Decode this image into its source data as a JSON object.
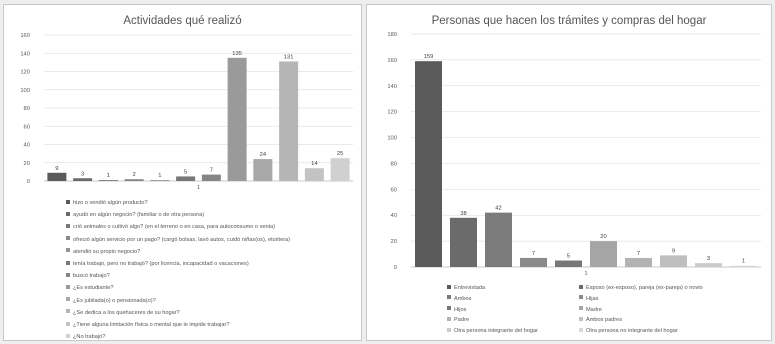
{
  "chart_data": [
    {
      "type": "bar",
      "title": "Actividades qué realizó",
      "ylim": [
        0,
        160
      ],
      "yticks": [
        0,
        20,
        40,
        60,
        80,
        100,
        120,
        140,
        160
      ],
      "categories": [
        "hizo o vendió algún producto?",
        "ayudó en algún negocio? (familiar o de otra persona)",
        "crió animales o cultivó algo? (en el terreno o en casa, para autoconsumo o venta)",
        "ofreció algún servicio por un pago? (cargó bolsas, lavó autos, cuidó niñas(os), etcétera)",
        "atendió su propio negocio?",
        "tenía trabajo, pero no trabajó? (por licencia, incapacidad o vacaciones)",
        "buscó trabajo?",
        "¿Es estudiante?",
        "¿Es jubilada(o) o pensionada(o)?",
        "¿Se dedica a los quehaceres de su hogar?",
        "¿Tiene alguna limitación física o mental que le impide trabajar?",
        "¿No trabajó?"
      ],
      "values": [
        9,
        3,
        1,
        2,
        1,
        5,
        7,
        135,
        24,
        131,
        14,
        25
      ],
      "colors": [
        "#5a5a5a",
        "#6a6a6a",
        "#7a7a7a",
        "#888888",
        "#939393",
        "#777777",
        "#858585",
        "#9a9a9a",
        "#a8a8a8",
        "#b5b5b5",
        "#c3c3c3",
        "#d0d0d0"
      ],
      "xtick_label": "1",
      "legend_position": "bottom",
      "grid": true
    },
    {
      "type": "bar",
      "title": "Personas que hacen los trámites y compras del hogar",
      "ylim": [
        0,
        180
      ],
      "yticks": [
        0,
        20,
        40,
        60,
        80,
        100,
        120,
        140,
        160,
        180
      ],
      "categories": [
        "Entrevistada",
        "Esposo (ex-esposo), pareja (ex-pareja) o novio",
        "Ambos",
        "Hijas",
        "Hijos",
        "Madre",
        "Padre",
        "Ambos padres",
        "Otra persona integrante del hogar",
        "Otra persona no integrante del hogar"
      ],
      "values": [
        159,
        38,
        42,
        7,
        5,
        20,
        7,
        9,
        3,
        1
      ],
      "colors": [
        "#5a5a5a",
        "#6b6b6b",
        "#7b7b7b",
        "#8a8a8a",
        "#777777",
        "#a5a5a5",
        "#b3b3b3",
        "#bfbfbf",
        "#cbcbcb",
        "#d8d8d8"
      ],
      "xtick_label": "1",
      "legend_position": "bottom",
      "grid": true
    }
  ]
}
